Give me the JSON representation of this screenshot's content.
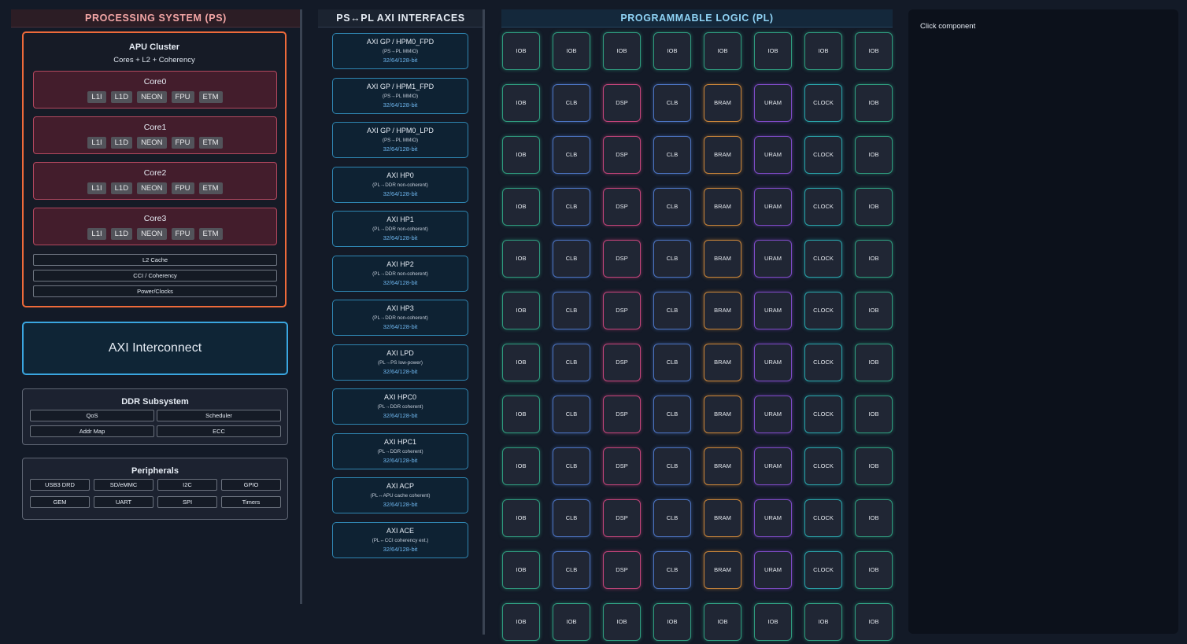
{
  "ps": {
    "title": "PROCESSING SYSTEM (PS)",
    "apu": {
      "title": "APU Cluster",
      "subtitle": "Cores + L2 + Coherency",
      "cores": [
        {
          "name": "Core0",
          "units": [
            "L1I",
            "L1D",
            "NEON",
            "FPU",
            "ETM"
          ]
        },
        {
          "name": "Core1",
          "units": [
            "L1I",
            "L1D",
            "NEON",
            "FPU",
            "ETM"
          ]
        },
        {
          "name": "Core2",
          "units": [
            "L1I",
            "L1D",
            "NEON",
            "FPU",
            "ETM"
          ]
        },
        {
          "name": "Core3",
          "units": [
            "L1I",
            "L1D",
            "NEON",
            "FPU",
            "ETM"
          ]
        }
      ],
      "shared": [
        "L2 Cache",
        "CCI / Coherency",
        "Power/Clocks"
      ]
    },
    "interconnect": "AXI Interconnect",
    "ddr": {
      "title": "DDR Subsystem",
      "items": [
        "QoS",
        "Scheduler",
        "Addr Map",
        "ECC"
      ]
    },
    "peripherals": {
      "title": "Peripherals",
      "items": [
        "USB3 DRD",
        "SD/eMMC",
        "I2C",
        "GPIO",
        "GEM",
        "UART",
        "SPI",
        "Timers"
      ]
    }
  },
  "axi": {
    "title": "PS↔PL AXI INTERFACES",
    "interfaces": [
      {
        "name": "AXI GP / HPM0_FPD",
        "desc": "(PS→PL MMIO)",
        "width": "32/64/128-bit"
      },
      {
        "name": "AXI GP / HPM1_FPD",
        "desc": "(PS→PL MMIO)",
        "width": "32/64/128-bit"
      },
      {
        "name": "AXI GP / HPM0_LPD",
        "desc": "(PS→PL MMIO)",
        "width": "32/64/128-bit"
      },
      {
        "name": "AXI HP0",
        "desc": "(PL→DDR non-coherent)",
        "width": "32/64/128-bit"
      },
      {
        "name": "AXI HP1",
        "desc": "(PL→DDR non-coherent)",
        "width": "32/64/128-bit"
      },
      {
        "name": "AXI HP2",
        "desc": "(PL→DDR non-coherent)",
        "width": "32/64/128-bit"
      },
      {
        "name": "AXI HP3",
        "desc": "(PL→DDR non-coherent)",
        "width": "32/64/128-bit"
      },
      {
        "name": "AXI LPD",
        "desc": "(PL→PS low-power)",
        "width": "32/64/128-bit"
      },
      {
        "name": "AXI HPC0",
        "desc": "(PL→DDR coherent)",
        "width": "32/64/128-bit"
      },
      {
        "name": "AXI HPC1",
        "desc": "(PL→DDR coherent)",
        "width": "32/64/128-bit"
      },
      {
        "name": "AXI ACP",
        "desc": "(PL↔APU cache coherent)",
        "width": "32/64/128-bit"
      },
      {
        "name": "AXI ACE",
        "desc": "(PL↔CCI coherency ext.)",
        "width": "32/64/128-bit"
      }
    ]
  },
  "pl": {
    "title": "PROGRAMMABLE LOGIC (PL)",
    "grid": [
      [
        "IOB",
        "IOB",
        "IOB",
        "IOB",
        "IOB",
        "IOB",
        "IOB",
        "IOB"
      ],
      [
        "IOB",
        "CLB",
        "DSP",
        "CLB",
        "BRAM",
        "URAM",
        "CLOCK",
        "IOB"
      ],
      [
        "IOB",
        "CLB",
        "DSP",
        "CLB",
        "BRAM",
        "URAM",
        "CLOCK",
        "IOB"
      ],
      [
        "IOB",
        "CLB",
        "DSP",
        "CLB",
        "BRAM",
        "URAM",
        "CLOCK",
        "IOB"
      ],
      [
        "IOB",
        "CLB",
        "DSP",
        "CLB",
        "BRAM",
        "URAM",
        "CLOCK",
        "IOB"
      ],
      [
        "IOB",
        "CLB",
        "DSP",
        "CLB",
        "BRAM",
        "URAM",
        "CLOCK",
        "IOB"
      ],
      [
        "IOB",
        "CLB",
        "DSP",
        "CLB",
        "BRAM",
        "URAM",
        "CLOCK",
        "IOB"
      ],
      [
        "IOB",
        "CLB",
        "DSP",
        "CLB",
        "BRAM",
        "URAM",
        "CLOCK",
        "IOB"
      ],
      [
        "IOB",
        "CLB",
        "DSP",
        "CLB",
        "BRAM",
        "URAM",
        "CLOCK",
        "IOB"
      ],
      [
        "IOB",
        "CLB",
        "DSP",
        "CLB",
        "BRAM",
        "URAM",
        "CLOCK",
        "IOB"
      ],
      [
        "IOB",
        "CLB",
        "DSP",
        "CLB",
        "BRAM",
        "URAM",
        "CLOCK",
        "IOB"
      ],
      [
        "IOB",
        "IOB",
        "IOB",
        "IOB",
        "IOB",
        "IOB",
        "IOB",
        "IOB"
      ]
    ]
  },
  "detail": {
    "placeholder": "Click component"
  }
}
